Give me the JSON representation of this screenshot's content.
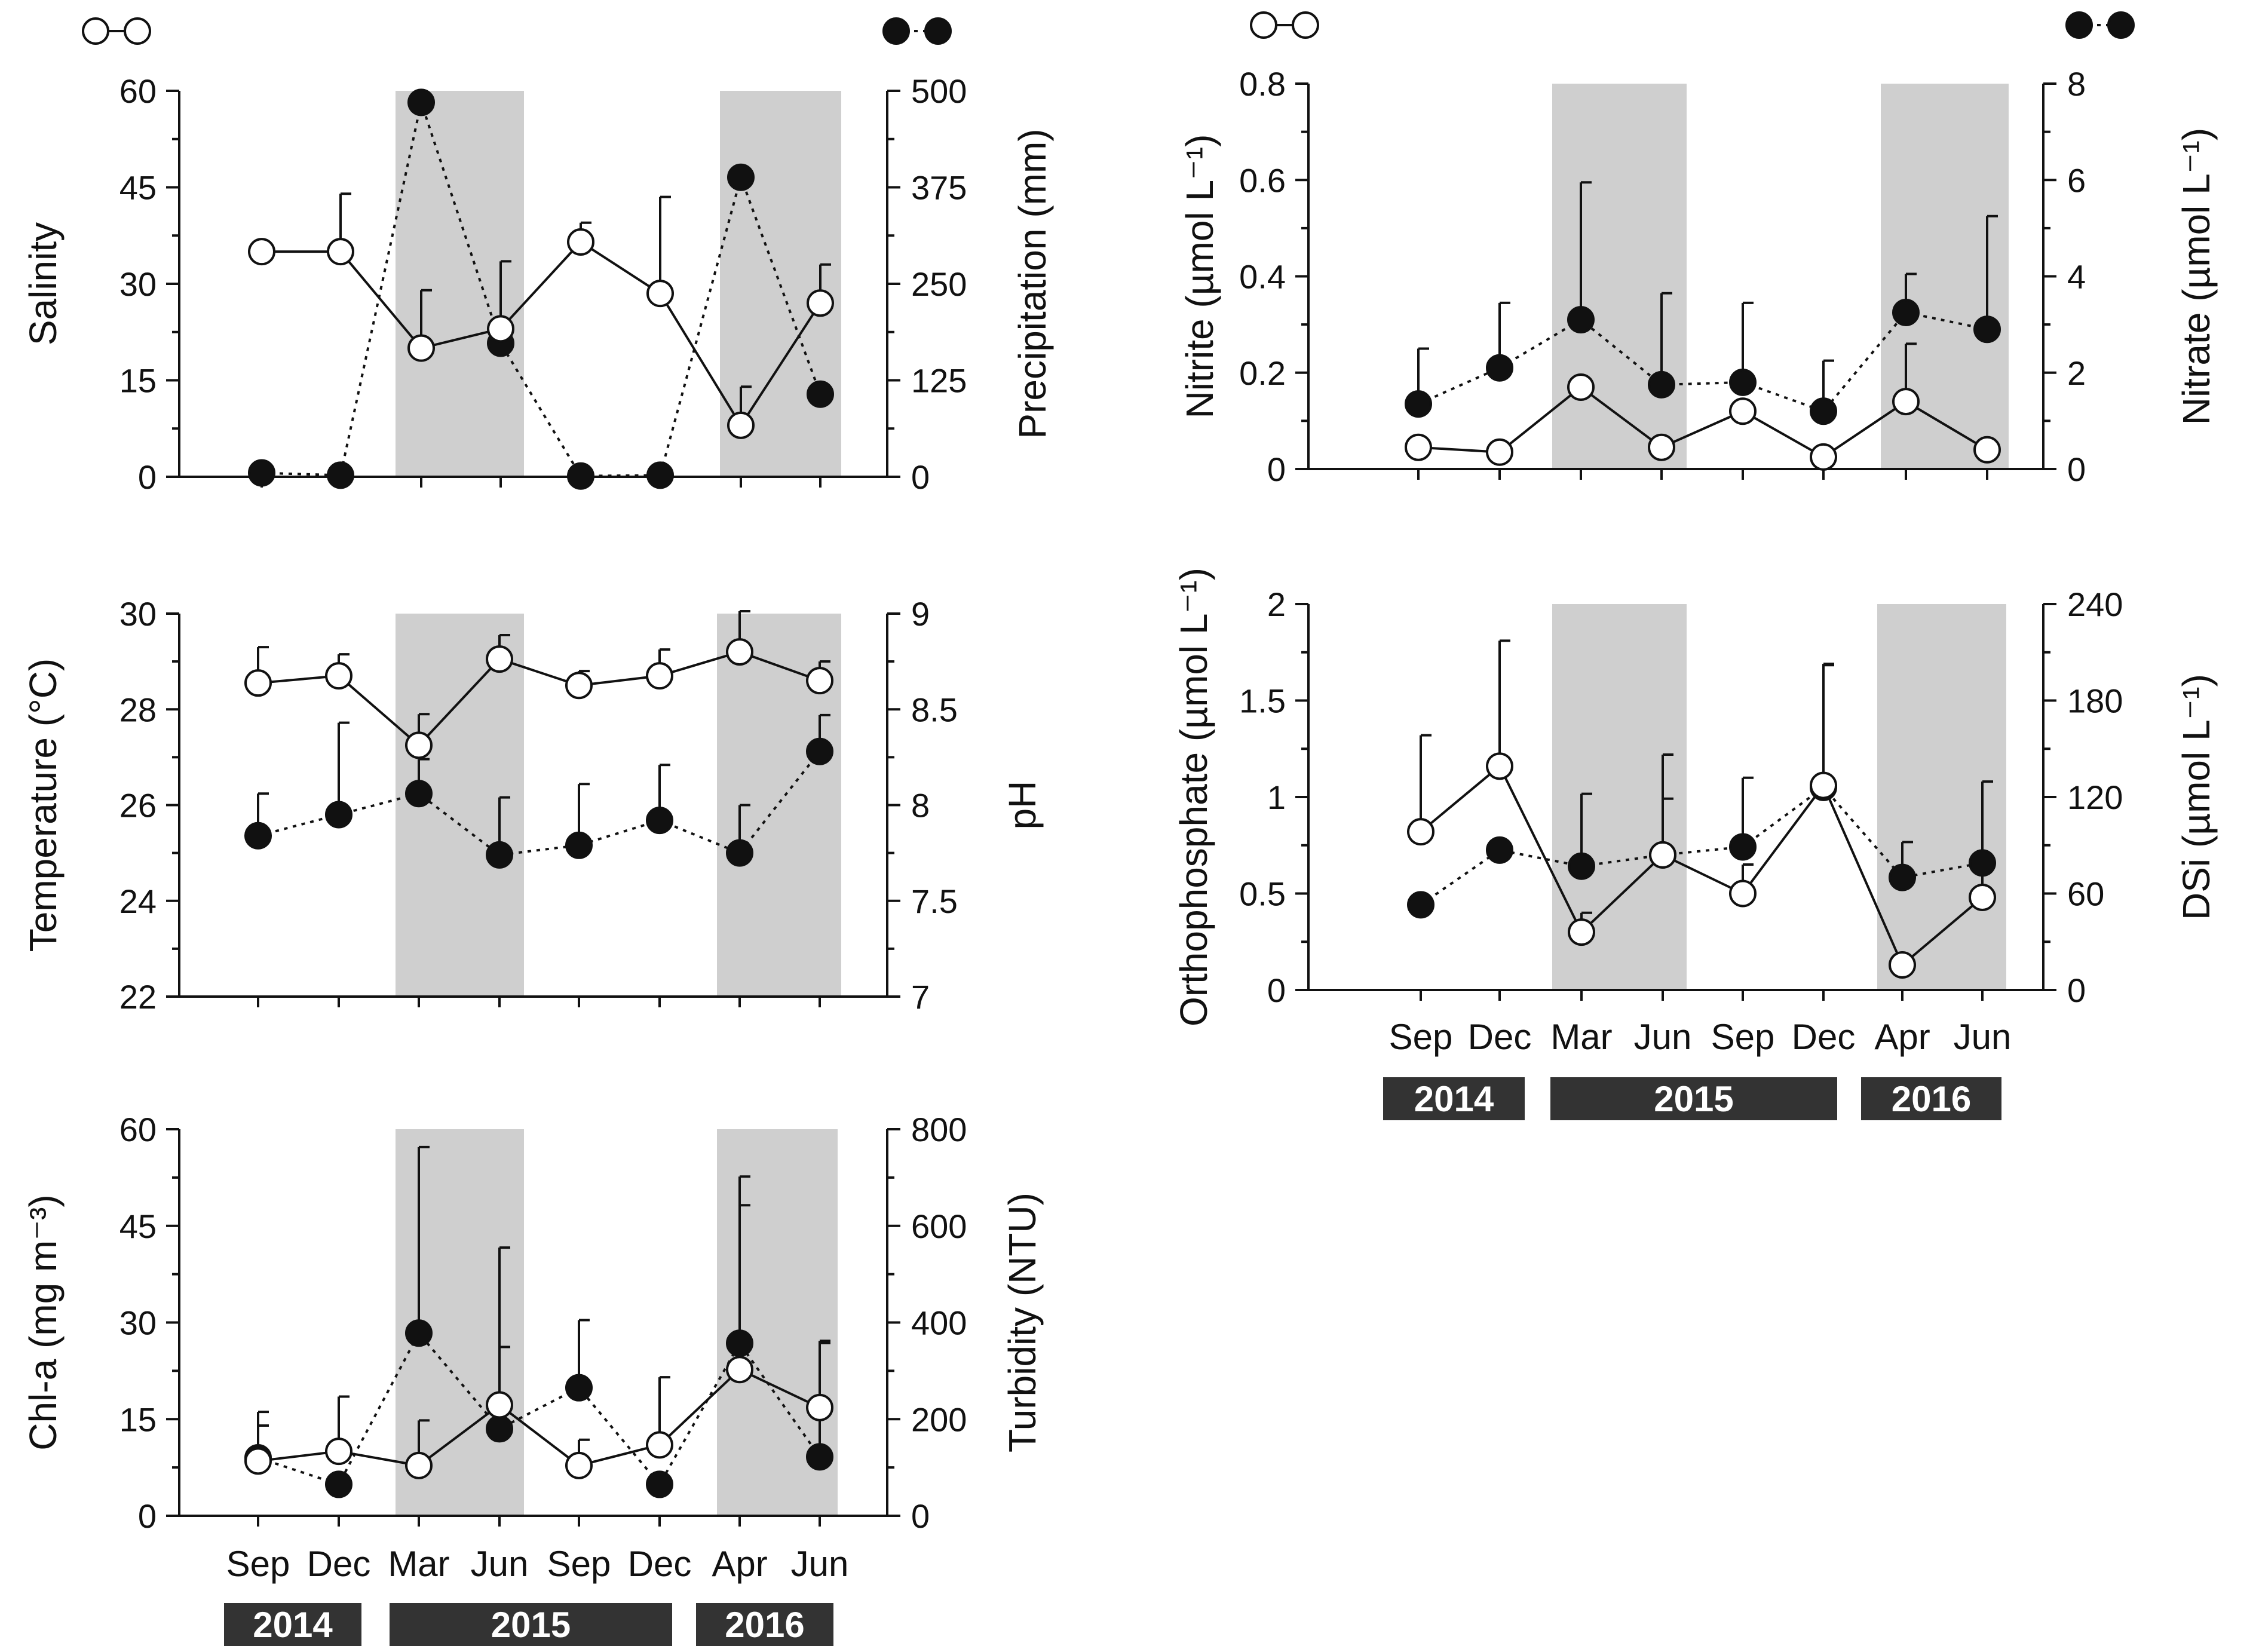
{
  "legend": {
    "open_series_symbol": "open-circle-solid-line",
    "filled_series_symbol": "filled-circle-dotted-line"
  },
  "x_axis": {
    "months": [
      "Sep",
      "Dec",
      "Mar",
      "Jun",
      "Sep",
      "Dec",
      "Apr",
      "Jun"
    ],
    "years": [
      "2014",
      "2015",
      "2016"
    ],
    "shaded_periods": [
      "Mar 2015 – Jun 2015",
      "Apr 2016 – Jun 2016"
    ]
  },
  "colors": {
    "shade": "#cfcfcf",
    "line": "#111111",
    "year_box": "#333333"
  },
  "chart_data": [
    {
      "type": "line",
      "panel": "salinity-precipitation",
      "categories": [
        "Sep 2014",
        "Dec 2014",
        "Mar 2015",
        "Jun 2015",
        "Sep 2015",
        "Dec 2015",
        "Apr 2016",
        "Jun 2016"
      ],
      "ylabel_left": "Salinity",
      "ylabel_right": "Precipitation (mm)",
      "ylim_left": [
        0,
        60
      ],
      "ylim_right": [
        0,
        500
      ],
      "yticks_left": [
        "0",
        "15",
        "30",
        "45",
        "60"
      ],
      "yticks_right": [
        "0",
        "125",
        "250",
        "375",
        "500"
      ],
      "series": [
        {
          "name": "Salinity",
          "axis": "left",
          "marker": "open",
          "line": "solid",
          "values": [
            35,
            35,
            20,
            23,
            36.5,
            28.5,
            8,
            27
          ],
          "errors": [
            1,
            9,
            9,
            10.5,
            3,
            15,
            6,
            6
          ]
        },
        {
          "name": "Precipitation",
          "axis": "right",
          "marker": "filled",
          "line": "dotted",
          "values": [
            5,
            2,
            485,
            173,
            1,
            2,
            388,
            107
          ],
          "errors": [
            0,
            0,
            0,
            0,
            0,
            0,
            0,
            0
          ]
        }
      ]
    },
    {
      "type": "line",
      "panel": "temperature-ph",
      "categories": [
        "Sep 2014",
        "Dec 2014",
        "Mar 2015",
        "Jun 2015",
        "Sep 2015",
        "Dec 2015",
        "Apr 2016",
        "Jun 2016"
      ],
      "ylabel_left": "Temperature (°C)",
      "ylabel_right": "pH",
      "ylim_left": [
        22,
        30
      ],
      "ylim_right": [
        7,
        9
      ],
      "yticks_left": [
        "22",
        "24",
        "26",
        "28",
        "30"
      ],
      "yticks_right": [
        "7",
        "7.5",
        "8",
        "8.5",
        "9"
      ],
      "series": [
        {
          "name": "Temperature",
          "axis": "left",
          "marker": "open",
          "line": "solid",
          "values": [
            28.55,
            28.7,
            27.25,
            29.05,
            28.5,
            28.7,
            29.2,
            28.6
          ],
          "errors": [
            0.75,
            0.45,
            0.65,
            0.5,
            0.3,
            0.55,
            0.85,
            0.4
          ]
        },
        {
          "name": "pH",
          "axis": "right",
          "marker": "filled",
          "line": "dotted",
          "values": [
            7.84,
            7.95,
            8.06,
            7.74,
            7.79,
            7.92,
            7.75,
            8.28
          ],
          "errors": [
            0.22,
            0.48,
            0.18,
            0.3,
            0.32,
            0.29,
            0.25,
            0.19
          ]
        }
      ]
    },
    {
      "type": "line",
      "panel": "chla-turbidity",
      "categories": [
        "Sep 2014",
        "Dec 2014",
        "Mar 2015",
        "Jun 2015",
        "Sep 2015",
        "Dec 2015",
        "Apr 2016",
        "Jun 2016"
      ],
      "ylabel_left": "Chl-a (mg m⁻³)",
      "ylabel_right": "Turbidity (NTU)",
      "ylim_left": [
        0,
        60
      ],
      "ylim_right": [
        0,
        800
      ],
      "yticks_left": [
        "0",
        "15",
        "30",
        "45",
        "60"
      ],
      "yticks_right": [
        "0",
        "200",
        "400",
        "600",
        "800"
      ],
      "series": [
        {
          "name": "Chl-a",
          "axis": "left",
          "marker": "open",
          "line": "solid",
          "values": [
            8.5,
            10,
            7.8,
            17.2,
            7.8,
            11,
            22.7,
            16.8
          ],
          "errors": [
            5.5,
            8.5,
            7,
            9,
            4,
            10.5,
            25.5,
            10
          ]
        },
        {
          "name": "Turbidity",
          "axis": "right",
          "marker": "filled",
          "line": "dotted",
          "values": [
            120,
            65,
            378,
            180,
            265,
            65,
            357,
            122
          ],
          "errors": [
            95,
            0,
            385,
            375,
            140,
            0,
            345,
            240
          ]
        }
      ]
    },
    {
      "type": "line",
      "panel": "nitrite-nitrate",
      "categories": [
        "Sep 2014",
        "Dec 2014",
        "Mar 2015",
        "Jun 2015",
        "Sep 2015",
        "Dec 2015",
        "Apr 2016",
        "Jun 2016"
      ],
      "ylabel_left": "Nitrite (µmol L⁻¹)",
      "ylabel_right": "Nitrate (µmol L⁻¹)",
      "ylim_left": [
        0,
        0.8
      ],
      "ylim_right": [
        0,
        8
      ],
      "yticks_left": [
        "0",
        "0.2",
        "0.4",
        "0.6",
        "0.8"
      ],
      "yticks_right": [
        "0",
        "2",
        "4",
        "6",
        "8"
      ],
      "series": [
        {
          "name": "Nitrite",
          "axis": "left",
          "marker": "open",
          "line": "solid",
          "values": [
            0.045,
            0.035,
            0.17,
            0.045,
            0.12,
            0.025,
            0.14,
            0.04
          ],
          "errors": [
            0,
            0,
            0,
            0,
            0,
            0,
            0.12,
            0
          ]
        },
        {
          "name": "Nitrate",
          "axis": "right",
          "marker": "filled",
          "line": "dotted",
          "values": [
            1.35,
            2.1,
            3.1,
            1.75,
            1.8,
            1.2,
            3.25,
            2.9
          ],
          "errors": [
            1.15,
            1.35,
            2.85,
            1.9,
            1.65,
            1.05,
            0.8,
            2.35
          ]
        }
      ]
    },
    {
      "type": "line",
      "panel": "orthophosphate-dsi",
      "categories": [
        "Sep 2014",
        "Dec 2014",
        "Mar 2015",
        "Jun 2015",
        "Sep 2015",
        "Dec 2015",
        "Apr 2016",
        "Jun 2016"
      ],
      "ylabel_left": "Orthophosphate (µmol L⁻¹)",
      "ylabel_right": "DSi (µmol L⁻¹)",
      "ylim_left": [
        0,
        2
      ],
      "ylim_right": [
        0,
        240
      ],
      "yticks_left": [
        "0",
        "0.5",
        "1",
        "1.5",
        "2"
      ],
      "yticks_right": [
        "0",
        "60",
        "120",
        "180",
        "240"
      ],
      "series": [
        {
          "name": "Orthophosphate",
          "axis": "left",
          "marker": "open",
          "line": "solid",
          "values": [
            0.82,
            1.16,
            0.3,
            0.7,
            0.5,
            1.06,
            0.13,
            0.48
          ],
          "errors": [
            0.5,
            0.65,
            0.1,
            0.52,
            0.15,
            0.63,
            0,
            0.6
          ]
        },
        {
          "name": "DSi",
          "axis": "right",
          "marker": "filled",
          "line": "dotted",
          "values": [
            53,
            87,
            77,
            84,
            89,
            126,
            70,
            79
          ],
          "errors": [
            0,
            0,
            45,
            35,
            43,
            76,
            22,
            0
          ]
        }
      ]
    }
  ]
}
